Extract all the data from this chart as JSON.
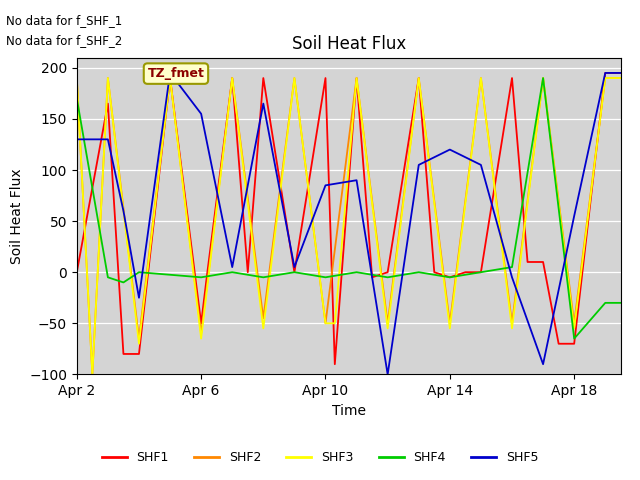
{
  "title": "Soil Heat Flux",
  "ylabel": "Soil Heat Flux",
  "xlabel": "Time",
  "ylim": [
    -100,
    210
  ],
  "yticks": [
    -100,
    -50,
    0,
    50,
    100,
    150,
    200
  ],
  "background_color": "#d4d4d4",
  "annotations": [
    "No data for f_SHF_1",
    "No data for f_SHF_2"
  ],
  "legend_box_label": "TZ_fmet",
  "series_colors": {
    "SHF1": "#ff0000",
    "SHF2": "#ff8800",
    "SHF3": "#ffff00",
    "SHF4": "#00cc00",
    "SHF5": "#0000cc"
  },
  "x_tick_labels": [
    "Apr 2",
    "Apr 6",
    "Apr 10",
    "Apr 14",
    "Apr 18"
  ],
  "x_tick_positions": [
    0,
    4,
    8,
    12,
    16
  ],
  "shf1_x": [
    0,
    1,
    1.5,
    2,
    3,
    4,
    4.2,
    5,
    5.5,
    6,
    7,
    8,
    8.3,
    9,
    9.5,
    10,
    11,
    11.5,
    12,
    12.5,
    13,
    14,
    14.5,
    15,
    15.5,
    16,
    17,
    17.5
  ],
  "shf1_y": [
    0,
    165,
    -80,
    -80,
    190,
    -50,
    0,
    190,
    0,
    190,
    0,
    190,
    -90,
    190,
    -5,
    0,
    190,
    0,
    -5,
    0,
    0,
    190,
    10,
    10,
    -70,
    -70,
    195,
    195
  ],
  "shf2_x": [
    0,
    0.5,
    1,
    2,
    3,
    4,
    5,
    6,
    7,
    8,
    9,
    10,
    11,
    12,
    13,
    14,
    15,
    16,
    17,
    17.5
  ],
  "shf2_y": [
    190,
    -100,
    190,
    -65,
    190,
    -60,
    190,
    -45,
    190,
    -50,
    190,
    -50,
    190,
    -50,
    190,
    -50,
    190,
    -50,
    190,
    190
  ],
  "shf3_x": [
    0,
    0.5,
    1,
    2,
    3,
    4,
    5,
    6,
    7,
    8,
    8.3,
    9,
    10,
    11,
    12,
    13,
    14,
    15,
    16,
    17,
    17.5
  ],
  "shf3_y": [
    190,
    -100,
    190,
    -70,
    190,
    -65,
    190,
    -55,
    190,
    -50,
    -50,
    190,
    -55,
    190,
    -55,
    190,
    -55,
    190,
    -55,
    190,
    190
  ],
  "shf4_x": [
    0,
    1,
    1.5,
    2,
    4,
    5,
    6,
    7,
    8,
    9,
    10,
    11,
    12,
    13,
    14,
    15,
    16,
    17,
    17.5
  ],
  "shf4_y": [
    170,
    -5,
    -10,
    0,
    -5,
    0,
    -5,
    0,
    -5,
    0,
    -5,
    0,
    -5,
    0,
    5,
    190,
    -65,
    -30,
    -30
  ],
  "shf5_x": [
    0,
    1,
    1.5,
    2,
    3,
    4,
    5,
    6,
    7,
    8,
    9,
    10,
    11,
    12,
    13,
    14,
    15,
    16,
    17,
    17.5
  ],
  "shf5_y": [
    130,
    130,
    60,
    -25,
    195,
    155,
    5,
    165,
    5,
    85,
    90,
    -100,
    105,
    120,
    105,
    -5,
    -90,
    55,
    195,
    195
  ]
}
